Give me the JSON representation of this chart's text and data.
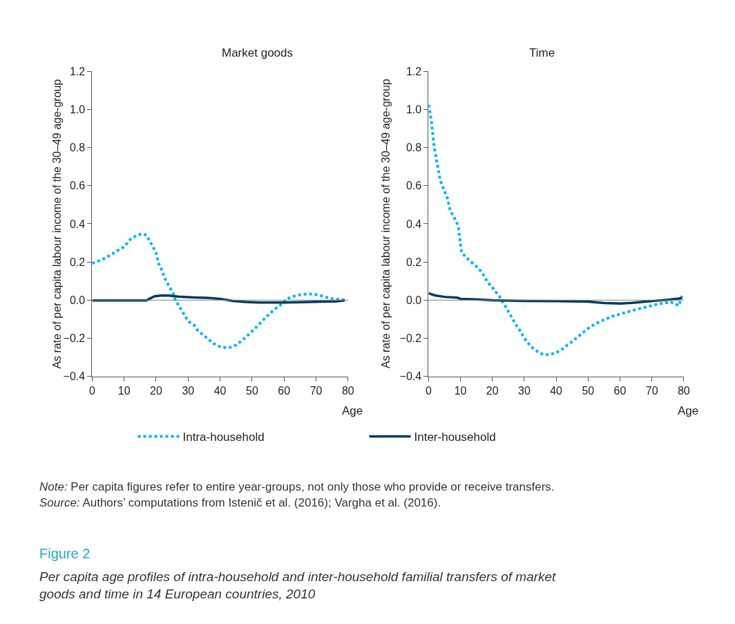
{
  "chart_data": [
    {
      "type": "line",
      "title": "Market goods",
      "xlabel": "Age",
      "ylabel": "As rate of per capita labour income of the 30–49 age-group",
      "xlim": [
        0,
        80
      ],
      "xticks": [
        0,
        10,
        20,
        30,
        40,
        50,
        60,
        70,
        80
      ],
      "ylim": [
        -0.4,
        1.2
      ],
      "yticks": [
        {
          "value": -0.4,
          "label": "−0.4"
        },
        {
          "value": -0.2,
          "label": "−0.2"
        },
        {
          "value": 0,
          "label": "0.0"
        },
        {
          "value": 0.2,
          "label": "0.2"
        },
        {
          "value": 0.4,
          "label": "0.4"
        },
        {
          "value": 0.6,
          "label": "0.6"
        },
        {
          "value": 0.8,
          "label": "0.8"
        },
        {
          "value": 1.0,
          "label": "1.0"
        },
        {
          "value": 1.2,
          "label": "1.2"
        }
      ],
      "legend": "bottom",
      "ref_lines": [
        {
          "axis": "y",
          "value": 0,
          "color": "#808080"
        }
      ],
      "series": [
        {
          "name": "Intra-household",
          "color": "#00b5ef",
          "line_style": "dotted",
          "x": [
            0,
            2,
            4,
            6,
            8,
            10,
            11,
            12,
            14,
            15.5,
            17,
            18,
            19,
            20,
            20.5,
            21,
            22,
            22.5,
            23.5,
            24.5,
            25.5,
            26,
            27,
            28,
            29,
            30,
            32,
            33,
            34.5,
            36,
            37.5,
            39,
            41,
            43,
            45,
            48,
            51,
            54,
            57,
            58.6,
            61,
            63,
            65,
            67,
            69,
            71,
            73,
            75,
            77,
            79
          ],
          "values": [
            0.193,
            0.205,
            0.22,
            0.24,
            0.26,
            0.28,
            0.3,
            0.32,
            0.34,
            0.348,
            0.34,
            0.31,
            0.28,
            0.246,
            0.214,
            0.18,
            0.153,
            0.12,
            0.09,
            0.06,
            0.03,
            0,
            -0.027,
            -0.054,
            -0.082,
            -0.11,
            -0.133,
            -0.159,
            -0.18,
            -0.2,
            -0.222,
            -0.239,
            -0.248,
            -0.248,
            -0.236,
            -0.195,
            -0.147,
            -0.095,
            -0.048,
            -0.03,
            0.008,
            0.02,
            0.028,
            0.032,
            0.032,
            0.026,
            0.016,
            0.008,
            0.004,
            0.001
          ]
        },
        {
          "name": "Inter-household",
          "color": "#003a5d",
          "line_style": "solid",
          "x": [
            0,
            17,
            18,
            19.5,
            22,
            24,
            27,
            32,
            36,
            40,
            44,
            48,
            52,
            60,
            66,
            72,
            76,
            79
          ],
          "values": [
            -0.002,
            -0.002,
            0.008,
            0.02,
            0.025,
            0.024,
            0.018,
            0.014,
            0.012,
            0.007,
            -0.004,
            -0.01,
            -0.012,
            -0.012,
            -0.011,
            -0.008,
            -0.007,
            -0.002
          ]
        }
      ]
    },
    {
      "type": "line",
      "title": "Time",
      "xlabel": "Age",
      "ylabel": "As rate of per capita labour income of the 30–49 age-group",
      "xlim": [
        0,
        80
      ],
      "xticks": [
        0,
        10,
        20,
        30,
        40,
        50,
        60,
        70,
        80
      ],
      "ylim": [
        -0.4,
        1.2
      ],
      "yticks": [
        {
          "value": -0.4,
          "label": "−0.4"
        },
        {
          "value": -0.2,
          "label": "−0.2"
        },
        {
          "value": 0,
          "label": "0.0"
        },
        {
          "value": 0.2,
          "label": "0.2"
        },
        {
          "value": 0.4,
          "label": "0.4"
        },
        {
          "value": 0.6,
          "label": "0.6"
        },
        {
          "value": 0.8,
          "label": "0.8"
        },
        {
          "value": 1.0,
          "label": "1.0"
        },
        {
          "value": 1.2,
          "label": "1.2"
        }
      ],
      "ref_lines": [
        {
          "axis": "y",
          "value": 0,
          "color": "#808080"
        }
      ],
      "annotations": [
        "Note: Per capita figures refer to entire year-groups, not only those who provide or receive transfers.",
        "Source: Authors’ computations from Istenič et al. (2016); Vargha et al. (2016).",
        "Figure 2",
        "Per capita age profiles of intra-household and inter-household familial transfers of market goods and time in 14 European countries, 2010"
      ],
      "series": [
        {
          "color": "#00b5ef",
          "line_style": "dotted",
          "x": [
            0,
            0.4,
            0.7,
            1,
            1.2,
            1.4,
            1.6,
            1.9,
            2.3,
            2.6,
            3,
            3.3,
            3.7,
            4.5,
            5.3,
            6,
            6.8,
            7.8,
            8.8,
            9.4,
            9.6,
            9.9,
            10.1,
            10.4,
            12,
            13.4,
            15,
            16.4,
            17.5,
            18.4,
            19.8,
            21,
            22.3,
            23.3,
            24.3,
            25.3,
            26.3,
            27.4,
            28.6,
            29.7,
            30.8,
            32.3,
            34,
            36,
            38,
            40,
            42,
            43.6,
            45.2,
            46.7,
            48.3,
            50,
            51.8,
            53.8,
            56,
            58,
            60,
            62,
            64,
            66,
            68,
            70,
            72,
            74,
            76,
            77.8,
            78.5,
            79.6
          ],
          "values": [
            1.024,
            0.99,
            0.958,
            0.924,
            0.89,
            0.857,
            0.824,
            0.79,
            0.758,
            0.725,
            0.693,
            0.658,
            0.626,
            0.593,
            0.56,
            0.53,
            0.468,
            0.44,
            0.41,
            0.379,
            0.345,
            0.312,
            0.279,
            0.249,
            0.221,
            0.199,
            0.177,
            0.152,
            0.125,
            0.096,
            0.071,
            0.045,
            0.018,
            -0.012,
            -0.039,
            -0.068,
            -0.099,
            -0.129,
            -0.158,
            -0.19,
            -0.218,
            -0.246,
            -0.268,
            -0.286,
            -0.286,
            -0.276,
            -0.256,
            -0.235,
            -0.215,
            -0.194,
            -0.171,
            -0.149,
            -0.129,
            -0.112,
            -0.096,
            -0.083,
            -0.073,
            -0.063,
            -0.054,
            -0.045,
            -0.037,
            -0.029,
            -0.02,
            -0.015,
            -0.01,
            -0.024,
            -0.029,
            0.036
          ]
        },
        {
          "color": "#003a5d",
          "line_style": "solid",
          "x": [
            0,
            2,
            5,
            9,
            10,
            15,
            20,
            30,
            40,
            50,
            55,
            60,
            64,
            68,
            72,
            75,
            79.5
          ],
          "values": [
            0.036,
            0.025,
            0.017,
            0.013,
            0.007,
            0.004,
            -0.001,
            -0.004,
            -0.005,
            -0.008,
            -0.015,
            -0.018,
            -0.014,
            -0.008,
            -0.002,
            0.002,
            0.01
          ]
        }
      ]
    }
  ]
}
